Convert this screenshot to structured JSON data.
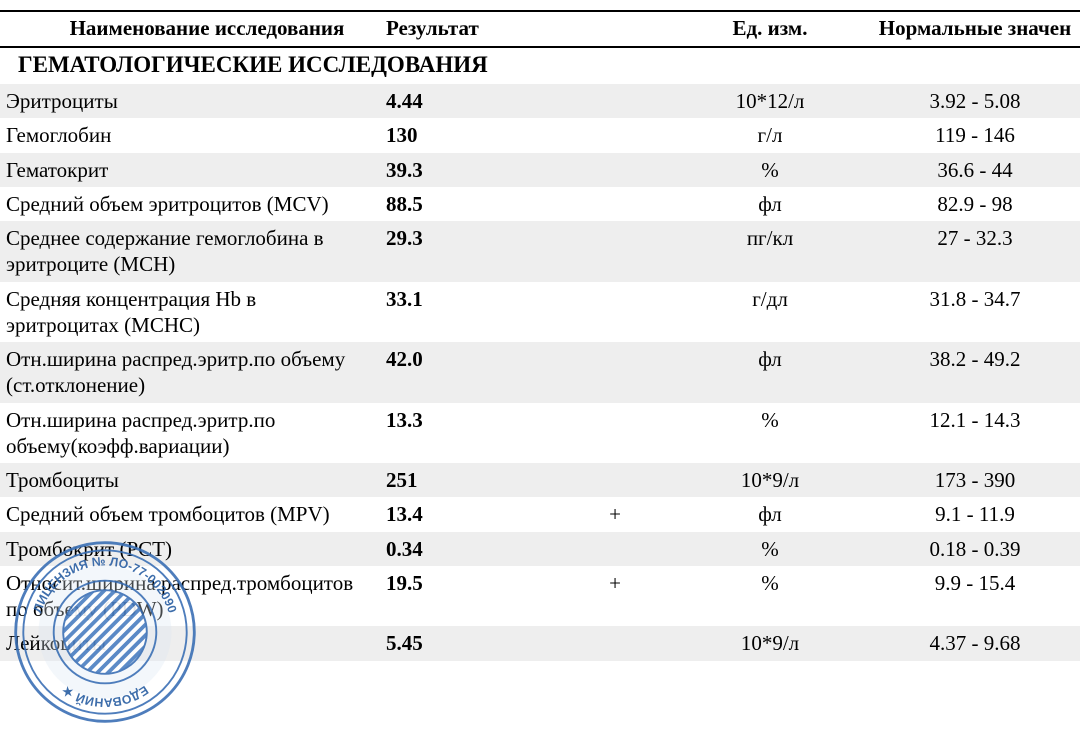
{
  "table": {
    "header": {
      "name": "Наименование исследования",
      "result": "Результат",
      "unit": "Ед. изм.",
      "range": "Нормальные значен"
    },
    "section_title": "ГЕМАТОЛОГИЧЕСКИЕ ИССЛЕДОВАНИЯ",
    "stripe_color": "#eeeeee",
    "border_color": "#000000",
    "rows": [
      {
        "name": "Эритроциты",
        "result": "4.44",
        "flag": "",
        "unit": "10*12/л",
        "range": "3.92 - 5.08",
        "stripe": true
      },
      {
        "name": "Гемоглобин",
        "result": "130",
        "flag": "",
        "unit": "г/л",
        "range": "119 - 146",
        "stripe": false
      },
      {
        "name": "Гематокрит",
        "result": "39.3",
        "flag": "",
        "unit": "%",
        "range": "36.6 - 44",
        "stripe": true
      },
      {
        "name": "Средний объем эритроцитов (MCV)",
        "result": "88.5",
        "flag": "",
        "unit": "фл",
        "range": "82.9 - 98",
        "stripe": false
      },
      {
        "name": "Среднее содержание гемоглобина в эритроците (MCH)",
        "result": "29.3",
        "flag": "",
        "unit": "пг/кл",
        "range": "27 - 32.3",
        "stripe": true
      },
      {
        "name": "Средняя концентрация Hb в эритроцитах (MCHC)",
        "result": "33.1",
        "flag": "",
        "unit": "г/дл",
        "range": "31.8 - 34.7",
        "stripe": false
      },
      {
        "name": "Отн.ширина распред.эритр.по объему (ст.отклонение)",
        "result": "42.0",
        "flag": "",
        "unit": "фл",
        "range": "38.2 - 49.2",
        "stripe": true
      },
      {
        "name": "Отн.ширина распред.эритр.по объему(коэфф.вариации)",
        "result": "13.3",
        "flag": "",
        "unit": "%",
        "range": "12.1 - 14.3",
        "stripe": false
      },
      {
        "name": "Тромбоциты",
        "result": "251",
        "flag": "",
        "unit": "10*9/л",
        "range": "173 - 390",
        "stripe": true
      },
      {
        "name": "Средний объем тромбоцитов (MPV)",
        "result": "13.4",
        "flag": "+",
        "unit": "фл",
        "range": "9.1 - 11.9",
        "stripe": false
      },
      {
        "name": "Тромбокрит (PCT)",
        "result": "0.34",
        "flag": "",
        "unit": "%",
        "range": "0.18 - 0.39",
        "stripe": true
      },
      {
        "name": "Относит.ширина распред.тромбоцитов по объему (PDW)",
        "result": "19.5",
        "flag": "+",
        "unit": "%",
        "range": "9.9 - 15.4",
        "stripe": false
      },
      {
        "name": "Лейкоциты",
        "result": "5.45",
        "flag": "",
        "unit": "10*9/л",
        "range": "4.37 - 9.68",
        "stripe": true
      }
    ]
  },
  "stamp": {
    "outer_color": "#3b70b5",
    "text_ring_bg": "#d9e4f2",
    "text_color": "#2a5fa3",
    "top_text": "ЛИЦЕНЗИЯ № ЛО-77-002090",
    "bottom_text": "ЕДОВАНИЙ  ★"
  }
}
